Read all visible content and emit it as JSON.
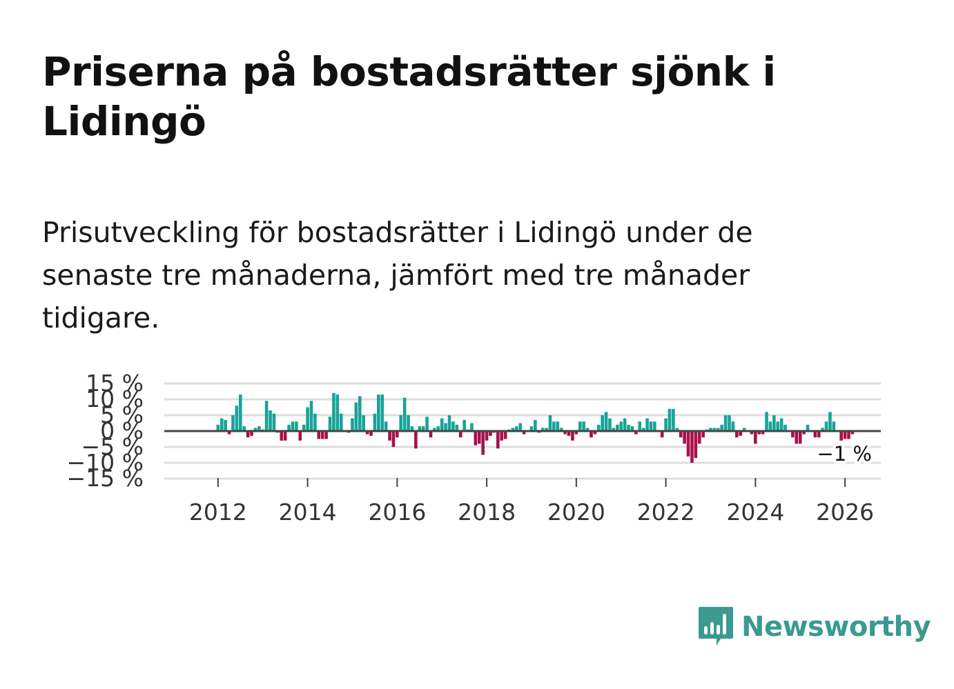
{
  "title": "Priserna på bostadsrätter sjönk i Lidingö",
  "subtitle": "Prisutveckling för bostadsrätter i Lidingö under de senaste tre månaderna, jämfört med tre månader tidigare.",
  "brand": {
    "name": "Newsworthy",
    "color": "#3a9a92"
  },
  "colors": {
    "positive": "#17a398",
    "negative": "#a8104a",
    "grid": "#dddddd",
    "zero_line": "#444444",
    "axis_text": "#333333"
  },
  "chart_data": {
    "type": "bar",
    "title": "Priserna på bostadsrätter sjönk i Lidingö",
    "xlabel": "",
    "ylabel": "",
    "ylim": [
      -15,
      15
    ],
    "y_ticks": [
      15,
      10,
      5,
      0,
      -5,
      -10,
      -15
    ],
    "y_tick_labels": [
      "15 %",
      "10 %",
      "5 %",
      "0 %",
      "−5 %",
      "−10 %",
      "−15 %"
    ],
    "x_range": [
      2010.8,
      2026.8
    ],
    "x_ticks": [
      2012,
      2014,
      2016,
      2018,
      2020,
      2022,
      2024,
      2026
    ],
    "x_tick_labels": [
      "2012",
      "2014",
      "2016",
      "2018",
      "2020",
      "2022",
      "2024",
      "2026"
    ],
    "annotation": {
      "label": "−1 %",
      "x": 2026.04,
      "value": -1
    },
    "series": [
      {
        "name": "Prisutveckling",
        "start": 2012.0,
        "step": 0.08333,
        "values": [
          2,
          4,
          3.5,
          -1,
          5,
          8,
          11.5,
          1.5,
          -2,
          -1.5,
          1,
          1.5,
          0.5,
          9.5,
          6.5,
          5.5,
          -0.5,
          -3,
          -3,
          2,
          3,
          3,
          -3,
          2,
          7.5,
          9.5,
          5.5,
          -2.5,
          -2.5,
          -2.5,
          4.5,
          12,
          11.5,
          5.5,
          0,
          -0.5,
          4,
          9,
          11,
          5,
          -1,
          -1.5,
          5.5,
          11.5,
          11.5,
          3,
          -3,
          -5,
          -2,
          5,
          10.5,
          5,
          1.5,
          -5.5,
          1.5,
          1.5,
          4.5,
          -2,
          1,
          1.5,
          4,
          2.5,
          5,
          3,
          2,
          -2,
          3.5,
          0.5,
          2.5,
          -4.5,
          -4,
          -7.5,
          -3,
          -1.5,
          -0.5,
          -5.5,
          -3,
          -2.5,
          0.5,
          1,
          1.5,
          2.5,
          -1,
          0,
          1.5,
          3.5,
          -0.5,
          1,
          1,
          5,
          3,
          3,
          1,
          -1,
          -1.5,
          -3,
          -1,
          3,
          3,
          1,
          -2,
          -1,
          2,
          5,
          6,
          4,
          1,
          2,
          3,
          4,
          2,
          1.5,
          -1,
          3,
          1,
          4,
          3,
          3,
          0,
          -2,
          4,
          7,
          7,
          1,
          -2,
          -4,
          -8,
          -10,
          -8.5,
          -4,
          -2,
          0.5,
          1,
          1,
          1,
          2,
          5,
          5,
          3,
          -2,
          -1.5,
          1,
          0,
          -1,
          -4,
          -1,
          -1,
          6,
          3,
          5,
          3,
          4,
          2,
          0,
          -2,
          -4,
          -4,
          -1,
          2,
          0,
          -2,
          -2,
          1,
          3,
          6,
          3,
          0,
          -3,
          -2.5,
          -2.5,
          -1
        ]
      }
    ]
  }
}
